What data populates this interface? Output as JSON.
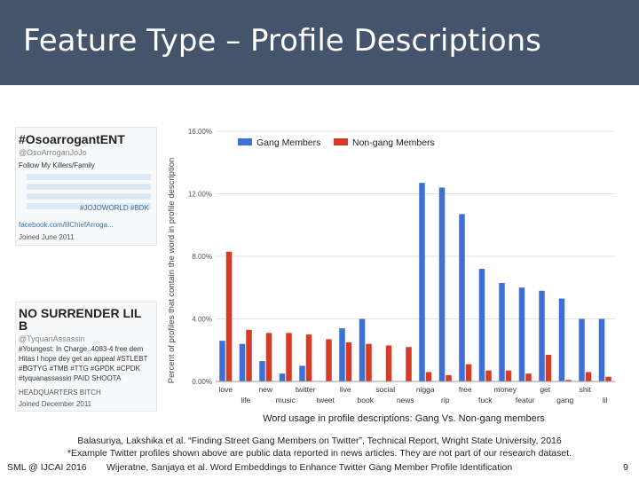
{
  "slide": {
    "title": "Feature Type – Profile Descriptions",
    "caption1": "Balasuriya, Lakshika et al. “Finding Street Gang Members on Twitter”, Technical Report, Wright State University, 2016",
    "caption2": "*Example Twitter profiles shown above are public data reported in news articles. They are not part of our research dataset.",
    "footer_left": "SML @ IJCAI 2016",
    "footer_mid": "Wijeratne, Sanjaya et al. Word Embeddings to Enhance Twitter Gang Member Profile Identification",
    "page_number": "9"
  },
  "profiles": [
    {
      "name": "#OsoarrogantENT",
      "handle": "@OsoArroganJoJo",
      "lines": [
        "Follow My Killers/Family",
        "#JOJOWORLD #BDK"
      ],
      "link": "facebook.com/lilChiefArroga...",
      "joined": "Joined June 2011"
    },
    {
      "name": "NO SURRENDER LIL B",
      "handle": "@TyquanAssassin",
      "lines": [
        "#Youngest: In Charge..4083-4 free dem",
        "Hitas I hope dey get an appeal #STLEBT",
        "#BGTYG #TMB #TTG #GPDK #CPDK",
        "#tyquanassassin PAID SHOOTA"
      ],
      "link": "HEADQUARTERS BITCH",
      "joined": "Joined December 2011"
    }
  ],
  "chart_data": {
    "type": "bar",
    "title": "Word usage in profile descriptions: Gang Vs. Non-gang members",
    "ylabel": "Percent of profiles that contain the word in profile description",
    "xlabel": "",
    "ylim": [
      0,
      16
    ],
    "yticks": [
      "0.00%",
      "4.00%",
      "8.00%",
      "12.00%",
      "16.00%"
    ],
    "grid": true,
    "legend_position": "top",
    "categories": [
      "love",
      "life",
      "new",
      "music",
      "twitter",
      "tweet",
      "live",
      "book",
      "social",
      "news",
      "nigga",
      "rip",
      "free",
      "fuck",
      "money",
      "featur",
      "get",
      "gang",
      "shit",
      "lil"
    ],
    "series": [
      {
        "name": "Gang Members",
        "color": "#3d6fd6",
        "values": [
          2.6,
          2.4,
          1.3,
          0.5,
          1.0,
          0.0,
          3.4,
          4.0,
          0.0,
          0.0,
          12.7,
          12.4,
          10.7,
          7.2,
          6.3,
          6.0,
          5.8,
          5.3,
          4.0,
          4.0
        ]
      },
      {
        "name": "Non-gang Members",
        "color": "#d63c25",
        "values": [
          8.3,
          3.3,
          3.1,
          3.1,
          3.0,
          2.7,
          2.5,
          2.4,
          2.3,
          2.2,
          0.6,
          0.4,
          1.1,
          0.7,
          0.7,
          0.5,
          1.7,
          0.1,
          0.6,
          0.3
        ]
      }
    ]
  }
}
